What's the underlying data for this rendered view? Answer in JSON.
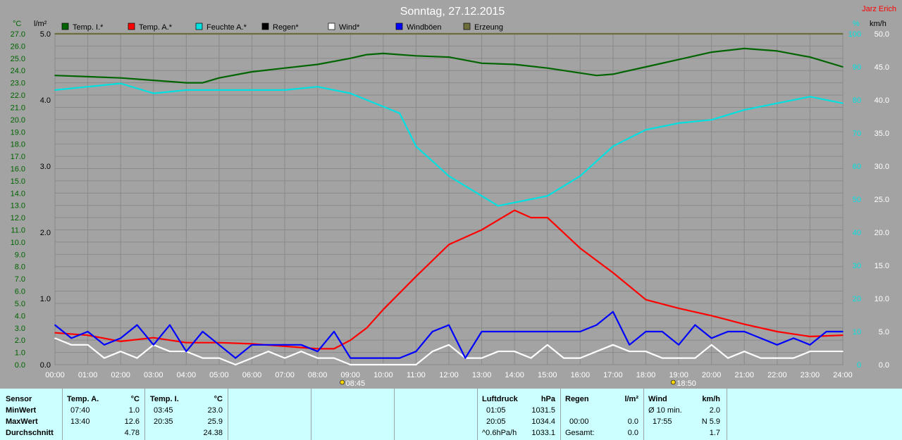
{
  "chart_data": {
    "type": "line",
    "title": "Sonntag, 27.12.2015",
    "author": "Jarz Erich",
    "left_axis_unit": "°C",
    "rain_axis_unit": "l/m²",
    "humidity_axis_unit": "%",
    "wind_axis_unit": "km/h",
    "temp_ylim": [
      0,
      27
    ],
    "rain_ylim": [
      0,
      5
    ],
    "humidity_ylim": [
      0,
      100
    ],
    "wind_ylim": [
      0,
      50
    ],
    "temp_ticks": [
      "0.0",
      "1.0",
      "2.0",
      "3.0",
      "4.0",
      "5.0",
      "6.0",
      "7.0",
      "8.0",
      "9.0",
      "10.0",
      "11.0",
      "12.0",
      "13.0",
      "14.0",
      "15.0",
      "16.0",
      "17.0",
      "18.0",
      "19.0",
      "20.0",
      "21.0",
      "22.0",
      "23.0",
      "24.0",
      "25.0",
      "26.0",
      "27.0"
    ],
    "rain_ticks": [
      "0.0",
      "1.0",
      "2.0",
      "3.0",
      "4.0",
      "5.0"
    ],
    "humidity_ticks": [
      "0",
      "10",
      "20",
      "30",
      "40",
      "50",
      "60",
      "70",
      "80",
      "90",
      "100"
    ],
    "wind_ticks": [
      "0.0",
      "5.0",
      "10.0",
      "15.0",
      "20.0",
      "25.0",
      "30.0",
      "35.0",
      "40.0",
      "45.0",
      "50.0"
    ],
    "x_ticks": [
      "00:00",
      "01:00",
      "02:00",
      "03:00",
      "04:00",
      "05:00",
      "06:00",
      "07:00",
      "08:00",
      "09:00",
      "10:00",
      "11:00",
      "12:00",
      "13:00",
      "14:00",
      "15:00",
      "16:00",
      "17:00",
      "18:00",
      "19:00",
      "20:00",
      "21:00",
      "22:00",
      "23:00",
      "24:00"
    ],
    "sunrise": "08:45",
    "sunset": "18:50",
    "grid": true,
    "legend": [
      {
        "label": "Temp. I.*",
        "color": "#006400"
      },
      {
        "label": "Temp. A.*",
        "color": "#ff0000"
      },
      {
        "label": "Feuchte A.*",
        "color": "#00e0e0"
      },
      {
        "label": "Regen*",
        "color": "#000000"
      },
      {
        "label": "Wind*",
        "color": "#ffffff"
      },
      {
        "label": "Windböen",
        "color": "#0000ff"
      },
      {
        "label": "Erzeung",
        "color": "#6e6e3c"
      }
    ],
    "series": [
      {
        "name": "Temp. I.*",
        "axis": "temp",
        "color": "#006400",
        "x": [
          0,
          1,
          2,
          3,
          4,
          4.5,
          5,
          6,
          7,
          8,
          9,
          9.5,
          10,
          11,
          12,
          13,
          14,
          15,
          16,
          16.5,
          17,
          18,
          19,
          20,
          21,
          22,
          23,
          24
        ],
        "y": [
          23.6,
          23.5,
          23.4,
          23.2,
          23.0,
          23.0,
          23.4,
          23.9,
          24.2,
          24.5,
          25.0,
          25.3,
          25.4,
          25.2,
          25.1,
          24.6,
          24.5,
          24.2,
          23.8,
          23.6,
          23.7,
          24.3,
          24.9,
          25.5,
          25.8,
          25.6,
          25.1,
          24.3
        ]
      },
      {
        "name": "Temp. A.*",
        "axis": "temp",
        "color": "#ff0000",
        "x": [
          0,
          1,
          2,
          3,
          4,
          5,
          6,
          7,
          8,
          8.5,
          9,
          9.5,
          10,
          11,
          12,
          13,
          13.5,
          14,
          14.5,
          15,
          16,
          17,
          18,
          19,
          20,
          21,
          22,
          23,
          24
        ],
        "y": [
          2.6,
          2.4,
          1.9,
          2.2,
          1.8,
          1.8,
          1.7,
          1.5,
          1.3,
          1.3,
          2.0,
          3.0,
          4.5,
          7.2,
          9.8,
          11.0,
          11.8,
          12.6,
          12.0,
          12.0,
          9.5,
          7.5,
          5.3,
          4.6,
          4.0,
          3.3,
          2.7,
          2.3,
          2.4
        ]
      },
      {
        "name": "Feuchte A.*",
        "axis": "humidity",
        "color": "#00e0e0",
        "x": [
          0,
          1,
          2,
          3,
          4,
          5,
          6,
          7,
          8,
          9,
          10,
          10.5,
          11,
          12,
          13,
          13.5,
          14,
          14.5,
          15,
          16,
          17,
          18,
          19,
          20,
          21,
          22,
          23,
          24
        ],
        "y": [
          83,
          84,
          85,
          82,
          83,
          83,
          83,
          83,
          84,
          82,
          78,
          76,
          66,
          57,
          51,
          48,
          49,
          50,
          51,
          57,
          66,
          71,
          73,
          74,
          77,
          79,
          81,
          79
        ]
      },
      {
        "name": "Wind*",
        "axis": "wind",
        "color": "#ffffff",
        "x": [
          0,
          0.5,
          1,
          1.5,
          2,
          2.5,
          3,
          3.5,
          4,
          4.5,
          5,
          5.5,
          6,
          6.5,
          7,
          7.5,
          8,
          8.5,
          9,
          9.5,
          10,
          10.5,
          11,
          11.5,
          12,
          12.5,
          13,
          13.5,
          14,
          14.5,
          15,
          15.5,
          16,
          16.5,
          17,
          17.5,
          18,
          18.5,
          19,
          19.5,
          20,
          20.5,
          21,
          21.5,
          22,
          22.5,
          23,
          23.5,
          24
        ],
        "y": [
          4,
          3,
          3,
          1,
          2,
          1,
          3,
          2,
          2,
          1,
          1,
          0,
          1,
          2,
          1,
          2,
          1,
          1,
          0,
          0,
          0,
          0,
          0,
          2,
          3,
          1,
          1,
          2,
          2,
          1,
          3,
          1,
          1,
          2,
          3,
          2,
          2,
          1,
          1,
          1,
          3,
          1,
          2,
          1,
          1,
          1,
          2,
          2,
          2
        ]
      },
      {
        "name": "Windböen",
        "axis": "wind",
        "color": "#0000ff",
        "x": [
          0,
          0.5,
          1,
          1.5,
          2,
          2.5,
          3,
          3.5,
          4,
          4.5,
          5,
          5.5,
          6,
          6.5,
          7,
          7.5,
          8,
          8.5,
          9,
          9.5,
          10,
          10.5,
          11,
          11.5,
          12,
          12.5,
          13,
          13.5,
          14,
          14.5,
          15,
          15.5,
          16,
          16.5,
          17,
          17.5,
          18,
          18.5,
          19,
          19.5,
          20,
          20.5,
          21,
          21.5,
          22,
          22.5,
          23,
          23.5,
          24
        ],
        "y": [
          6,
          4,
          5,
          3,
          4,
          6,
          3,
          6,
          2,
          5,
          3,
          1,
          3,
          3,
          3,
          3,
          2,
          5,
          1,
          1,
          1,
          1,
          2,
          5,
          6,
          1,
          5,
          5,
          5,
          5,
          5,
          5,
          5,
          6,
          8,
          3,
          5,
          5,
          3,
          6,
          4,
          5,
          5,
          4,
          3,
          4,
          3,
          5,
          5
        ]
      },
      {
        "name": "Erzeung",
        "axis": "rain",
        "color": "#6e6e3c",
        "x": [
          0,
          2,
          4,
          6,
          8,
          10,
          12,
          14,
          16,
          18,
          20,
          22,
          24
        ],
        "y": [
          5,
          5,
          5,
          5,
          5,
          5,
          5,
          5,
          5,
          5,
          5,
          5,
          5
        ]
      }
    ]
  },
  "stats": {
    "sensor": {
      "header": "Sensor",
      "rows": [
        "MinWert",
        "MaxWert",
        "Durchschnitt"
      ]
    },
    "temp_a": {
      "header": "Temp. A.",
      "unit": "°C",
      "min_time": "07:40",
      "min_val": "1.0",
      "max_time": "13:40",
      "max_val": "12.6",
      "avg": "4.78"
    },
    "temp_i": {
      "header": "Temp. I.",
      "unit": "°C",
      "min_time": "03:45",
      "min_val": "23.0",
      "max_time": "20:35",
      "max_val": "25.9",
      "avg": "24.38"
    },
    "luftdruck": {
      "header": "Luftdruck",
      "unit": "hPa",
      "min_time": "01:05",
      "min_val": "1031.5",
      "max_time": "20:05",
      "max_val": "1034.4",
      "avg_label": "^0.6hPa/h",
      "avg": "1033.1"
    },
    "regen": {
      "header": "Regen",
      "unit": "l/m²",
      "row2_time": "00:00",
      "row2_val": "0.0",
      "row3_label": "Gesamt:",
      "row3_val": "0.0"
    },
    "wind": {
      "header": "Wind",
      "unit": "km/h",
      "row1_label": "Ø 10 min.",
      "row1_val": "2.0",
      "row2_time": "17:55",
      "row2_val": "N 5.9",
      "row3_val": "1.7"
    }
  }
}
